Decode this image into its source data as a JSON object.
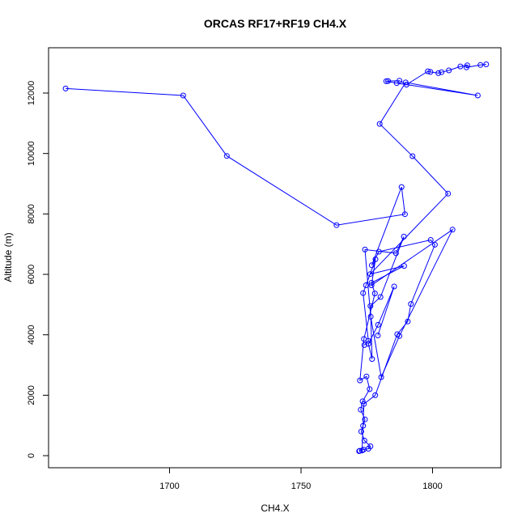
{
  "chart_data": {
    "type": "line",
    "title": "ORCAS RF17+RF19 CH4.X",
    "xlabel": "CH4.X",
    "ylabel": "Altitude (m)",
    "xlim": [
      1654,
      1826
    ],
    "ylim": [
      -400,
      13500
    ],
    "x_ticks": [
      1700,
      1750,
      1800
    ],
    "y_ticks": [
      0,
      2000,
      4000,
      6000,
      8000,
      10000,
      12000
    ],
    "grid": false,
    "legend": "none",
    "colors": {
      "series": "#0000ff",
      "axes": "#000000"
    },
    "series": [
      {
        "x": [
          1820.4,
          1818.2,
          1812.9,
          1813.2,
          1810.6,
          1806.2,
          1803.4,
          1802.2,
          1799.2,
          1798.2,
          1790.1,
          1787.4,
          1783.1,
          1782.4,
          1786.4,
          1817.2,
          1789.8,
          1779.9,
          1792.4,
          1805.9,
          1776.3,
          1789.2,
          1776.8,
          1778.1,
          1773.9,
          1772.4,
          1774.9,
          1776.1,
          1773.4,
          1772.7,
          1774.3,
          1773.6,
          1772.9,
          1774.1,
          1776.4,
          1775.6,
          1773.8,
          1772.3,
          1772.1,
          1773.2,
          1773.9,
          1778.2,
          1786.6,
          1790.6,
          1791.8,
          1800.9,
          1799.3,
          1779.6,
          1776.9,
          1788.2,
          1789.5,
          1763.5,
          1721.8,
          1705.2,
          1660.5
        ],
        "y": [
          12950,
          12930,
          12850,
          12920,
          12880,
          12750,
          12690,
          12660,
          12700,
          12720,
          12280,
          12410,
          12400,
          12390,
          12330,
          11920,
          12350,
          10980,
          9910,
          8670,
          6010,
          6280,
          5720,
          5370,
          3860,
          2490,
          2620,
          2200,
          1800,
          1520,
          1200,
          990,
          800,
          500,
          310,
          230,
          200,
          160,
          150,
          170,
          1710,
          2000,
          4020,
          4440,
          5020,
          6980,
          7140,
          6750,
          6300,
          8890,
          7990,
          7630,
          9920,
          11920,
          12150
        ]
      },
      {
        "x": [
          1779.2,
          1785.4,
          1779.3,
          1775.6,
          1777.0,
          1776.4,
          1780.2,
          1789.1,
          1786.1,
          1774.3,
          1776.5,
          1780.5,
          1787.4,
          1807.6,
          1776.8,
          1778.3,
          1774.7,
          1773.6,
          1775.6,
          1774.1
        ],
        "y": [
          3980,
          5600,
          4330,
          3700,
          3200,
          4950,
          5250,
          7250,
          6700,
          6820,
          4600,
          2600,
          3960,
          7480,
          5640,
          6500,
          5640,
          5380,
          3800,
          3660
        ]
      }
    ]
  }
}
